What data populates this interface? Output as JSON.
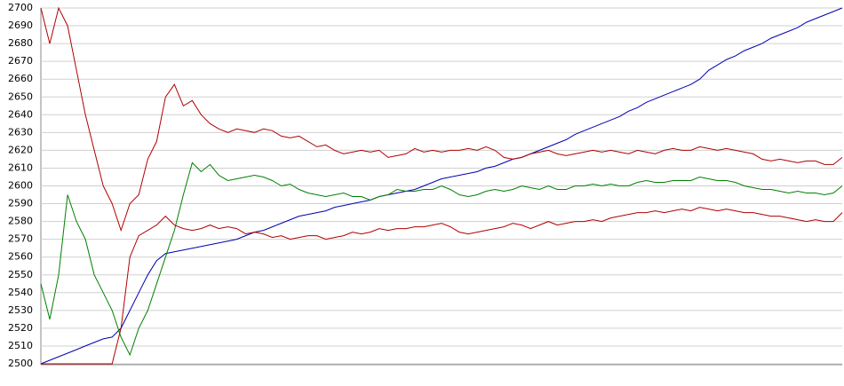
{
  "chart_data": {
    "type": "line",
    "ylim": [
      2500,
      2700
    ],
    "yticks": [
      2500,
      2510,
      2520,
      2530,
      2540,
      2550,
      2560,
      2570,
      2580,
      2590,
      2600,
      2610,
      2620,
      2630,
      2640,
      2650,
      2660,
      2670,
      2680,
      2690,
      2700
    ],
    "grid": true,
    "series": [
      {
        "color": "#0000b0",
        "values": [
          2500,
          2502,
          2504,
          2506,
          2508,
          2510,
          2512,
          2514,
          2515,
          2520,
          2530,
          2540,
          2550,
          2558,
          2562,
          2563,
          2564,
          2565,
          2566,
          2567,
          2568,
          2569,
          2570,
          2572,
          2574,
          2575,
          2577,
          2579,
          2581,
          2583,
          2584,
          2585,
          2586,
          2588,
          2589,
          2590,
          2591,
          2592,
          2594,
          2595,
          2596,
          2597,
          2598,
          2600,
          2602,
          2604,
          2605,
          2606,
          2607,
          2608,
          2610,
          2611,
          2613,
          2615,
          2616,
          2618,
          2620,
          2622,
          2624,
          2626,
          2629,
          2631,
          2633,
          2635,
          2637,
          2639,
          2642,
          2644,
          2647,
          2649,
          2651,
          2653,
          2655,
          2657,
          2660,
          2665,
          2668,
          2671,
          2673,
          2676,
          2678,
          2680,
          2683,
          2685,
          2687,
          2689,
          2692,
          2694,
          2696,
          2698,
          2700
        ]
      },
      {
        "color": "#b00000",
        "values": [
          2700,
          2680,
          2700,
          2690,
          2665,
          2640,
          2620,
          2600,
          2590,
          2575,
          2590,
          2595,
          2615,
          2625,
          2650,
          2657,
          2645,
          2648,
          2640,
          2635,
          2632,
          2630,
          2632,
          2631,
          2630,
          2632,
          2631,
          2628,
          2627,
          2628,
          2625,
          2622,
          2623,
          2620,
          2618,
          2619,
          2620,
          2619,
          2620,
          2616,
          2617,
          2618,
          2621,
          2619,
          2620,
          2619,
          2620,
          2620,
          2621,
          2620,
          2622,
          2620,
          2616,
          2615,
          2616,
          2618,
          2619,
          2620,
          2618,
          2617,
          2618,
          2619,
          2620,
          2619,
          2620,
          2619,
          2618,
          2620,
          2619,
          2618,
          2620,
          2621,
          2620,
          2620,
          2622,
          2621,
          2620,
          2621,
          2620,
          2619,
          2618,
          2615,
          2614,
          2615,
          2614,
          2613,
          2614,
          2614,
          2612,
          2612,
          2616
        ]
      },
      {
        "color": "#008000",
        "values": [
          2545,
          2525,
          2550,
          2595,
          2580,
          2570,
          2550,
          2540,
          2530,
          2515,
          2505,
          2520,
          2530,
          2545,
          2560,
          2575,
          2595,
          2613,
          2608,
          2612,
          2606,
          2603,
          2604,
          2605,
          2606,
          2605,
          2603,
          2600,
          2601,
          2598,
          2596,
          2595,
          2594,
          2595,
          2596,
          2594,
          2594,
          2592,
          2594,
          2595,
          2598,
          2597,
          2597,
          2598,
          2598,
          2600,
          2598,
          2595,
          2594,
          2595,
          2597,
          2598,
          2597,
          2598,
          2600,
          2599,
          2598,
          2600,
          2598,
          2598,
          2600,
          2600,
          2601,
          2600,
          2601,
          2600,
          2600,
          2602,
          2603,
          2602,
          2602,
          2603,
          2603,
          2603,
          2605,
          2604,
          2603,
          2603,
          2602,
          2600,
          2599,
          2598,
          2598,
          2597,
          2596,
          2597,
          2596,
          2596,
          2595,
          2596,
          2600
        ]
      },
      {
        "color": "#b00000",
        "values": [
          2500,
          2500,
          2500,
          2500,
          2500,
          2500,
          2500,
          2500,
          2500,
          2520,
          2560,
          2572,
          2575,
          2578,
          2583,
          2578,
          2576,
          2575,
          2576,
          2578,
          2576,
          2577,
          2576,
          2573,
          2574,
          2573,
          2571,
          2572,
          2570,
          2571,
          2572,
          2572,
          2570,
          2571,
          2572,
          2574,
          2573,
          2574,
          2576,
          2575,
          2576,
          2576,
          2577,
          2577,
          2578,
          2579,
          2577,
          2574,
          2573,
          2574,
          2575,
          2576,
          2577,
          2579,
          2578,
          2576,
          2578,
          2580,
          2578,
          2579,
          2580,
          2580,
          2581,
          2580,
          2582,
          2583,
          2584,
          2585,
          2585,
          2586,
          2585,
          2586,
          2587,
          2586,
          2588,
          2587,
          2586,
          2587,
          2586,
          2585,
          2585,
          2584,
          2583,
          2583,
          2582,
          2581,
          2580,
          2581,
          2580,
          2580,
          2585
        ]
      }
    ]
  }
}
